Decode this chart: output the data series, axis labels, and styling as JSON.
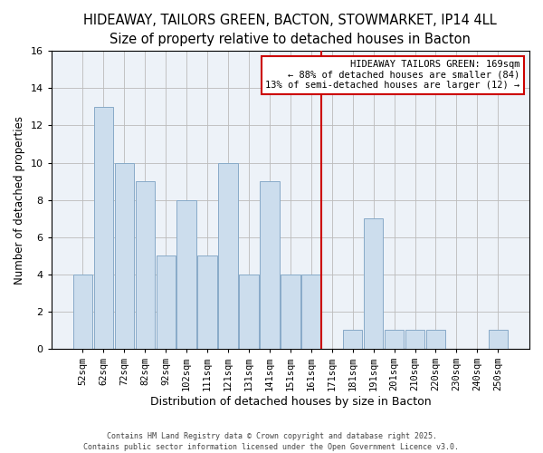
{
  "title": "HIDEAWAY, TAILORS GREEN, BACTON, STOWMARKET, IP14 4LL",
  "subtitle": "Size of property relative to detached houses in Bacton",
  "xlabel": "Distribution of detached houses by size in Bacton",
  "ylabel": "Number of detached properties",
  "bar_labels": [
    "52sqm",
    "62sqm",
    "72sqm",
    "82sqm",
    "92sqm",
    "102sqm",
    "111sqm",
    "121sqm",
    "131sqm",
    "141sqm",
    "151sqm",
    "161sqm",
    "171sqm",
    "181sqm",
    "191sqm",
    "201sqm",
    "210sqm",
    "220sqm",
    "230sqm",
    "240sqm",
    "250sqm"
  ],
  "bar_values": [
    4,
    13,
    10,
    9,
    5,
    8,
    5,
    10,
    4,
    9,
    4,
    4,
    0,
    1,
    7,
    1,
    1,
    1,
    0,
    0,
    1
  ],
  "bar_color": "#ccdded",
  "bar_edgecolor": "#88aac8",
  "bar_linewidth": 0.7,
  "vline_index": 12,
  "vline_color": "#cc0000",
  "vline_linewidth": 1.5,
  "ylim": [
    0,
    16
  ],
  "yticks": [
    0,
    2,
    4,
    6,
    8,
    10,
    12,
    14,
    16
  ],
  "grid_color": "#bbbbbb",
  "background_color": "#edf2f8",
  "annotation_title": "HIDEAWAY TAILORS GREEN: 169sqm",
  "annotation_line1": "← 88% of detached houses are smaller (84)",
  "annotation_line2": "13% of semi-detached houses are larger (12) →",
  "annotation_box_edgecolor": "#cc0000",
  "annotation_box_facecolor": "#ffffff",
  "footnote1": "Contains HM Land Registry data © Crown copyright and database right 2025.",
  "footnote2": "Contains public sector information licensed under the Open Government Licence v3.0.",
  "title_fontsize": 10.5,
  "subtitle_fontsize": 9.5,
  "xlabel_fontsize": 9,
  "ylabel_fontsize": 8.5,
  "ytick_fontsize": 8,
  "xtick_fontsize": 7.5,
  "annotation_fontsize": 7.5,
  "footnote_fontsize": 6.0
}
